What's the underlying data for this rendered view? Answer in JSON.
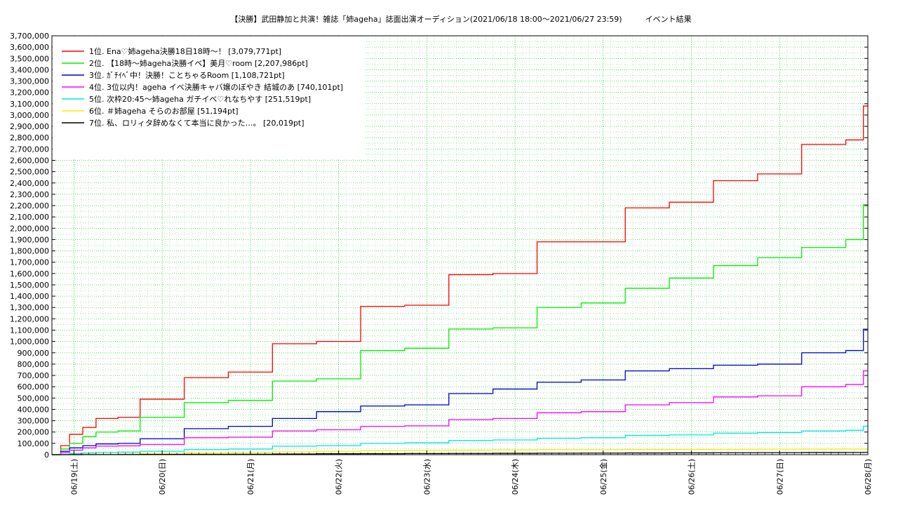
{
  "chart_data": {
    "type": "line",
    "title": "【決勝】武田静加と共演！雑誌「姉ageha」誌面出演オーディション(2021/06/18 18:00〜2021/06/27 23:59)　　　イベント結果",
    "xlabel": "",
    "ylabel": "",
    "ylim": [
      0,
      3700000
    ],
    "y_ticks": [
      "0",
      "100,000",
      "200,000",
      "300,000",
      "400,000",
      "500,000",
      "600,000",
      "700,000",
      "800,000",
      "900,000",
      "1,000,000",
      "1,100,000",
      "1,200,000",
      "1,300,000",
      "1,400,000",
      "1,500,000",
      "1,600,000",
      "1,700,000",
      "1,800,000",
      "1,900,000",
      "2,000,000",
      "2,100,000",
      "2,200,000",
      "2,300,000",
      "2,400,000",
      "2,500,000",
      "2,600,000",
      "2,700,000",
      "2,800,000",
      "2,900,000",
      "3,000,000",
      "3,100,000",
      "3,200,000",
      "3,300,000",
      "3,400,000",
      "3,500,000",
      "3,600,000",
      "3,700,000"
    ],
    "x_ticks": [
      "06/19(土)",
      "06/20(日)",
      "06/21(月)",
      "06/22(火)",
      "06/23(水)",
      "06/24(木)",
      "06/25(金)",
      "06/26(土)",
      "06/27(日)",
      "06/28(月)"
    ],
    "x_unit": "days since 2021/06/18 18:00",
    "xlim": [
      0,
      9.25
    ],
    "x": [
      0,
      0.1,
      0.2,
      0.35,
      0.5,
      0.75,
      1,
      1.5,
      2,
      2.5,
      3,
      3.5,
      4,
      4.5,
      5,
      5.5,
      6,
      6.5,
      7,
      7.5,
      8,
      8.5,
      9,
      9.2,
      9.25
    ],
    "grid": true,
    "legend_position": "top-left",
    "series": [
      {
        "name": "1位. Ena♡姉ageha決勝18日18時〜！ [3,079,771pt]",
        "color": "#ff0000",
        "values": [
          0,
          80000,
          180000,
          240000,
          320000,
          330000,
          490000,
          680000,
          730000,
          980000,
          1000000,
          1310000,
          1320000,
          1590000,
          1600000,
          1880000,
          1880000,
          2180000,
          2230000,
          2420000,
          2480000,
          2740000,
          2780000,
          3079771,
          3079771
        ]
      },
      {
        "name": "2位. 【18時〜姉ageha決勝イベ】美月♡room [2,207,986pt]",
        "color": "#00ee00",
        "values": [
          0,
          50000,
          100000,
          160000,
          200000,
          210000,
          330000,
          460000,
          480000,
          650000,
          670000,
          920000,
          940000,
          1110000,
          1120000,
          1300000,
          1340000,
          1470000,
          1560000,
          1670000,
          1740000,
          1830000,
          1900000,
          2207986,
          2207986
        ]
      },
      {
        "name": "3位. ｶﾞﾁｲﾍﾞ中！決勝！ことちゃるRoom [1,108,721pt]",
        "color": "#0000cc",
        "values": [
          0,
          30000,
          60000,
          80000,
          95000,
          100000,
          140000,
          230000,
          250000,
          320000,
          380000,
          430000,
          440000,
          540000,
          580000,
          640000,
          660000,
          740000,
          760000,
          790000,
          800000,
          900000,
          920000,
          1108721,
          1108721
        ]
      },
      {
        "name": "4位. 3位以内！ageha イベ決勝キャバ嬢のぼやき 結城のあ [740,101pt]",
        "color": "#ff00ff",
        "values": [
          0,
          20000,
          40000,
          60000,
          75000,
          78000,
          90000,
          150000,
          155000,
          210000,
          220000,
          250000,
          255000,
          310000,
          320000,
          370000,
          380000,
          440000,
          460000,
          510000,
          520000,
          600000,
          620000,
          740101,
          740101
        ]
      },
      {
        "name": "5位. 次枠20:45〜姉ageha ガチイベ♡れなちやす [251,519pt]",
        "color": "#00e6e6",
        "values": [
          0,
          5000,
          10000,
          15000,
          20000,
          22000,
          30000,
          45000,
          50000,
          75000,
          80000,
          100000,
          105000,
          125000,
          130000,
          145000,
          150000,
          170000,
          175000,
          190000,
          195000,
          210000,
          215000,
          251519,
          251519
        ]
      },
      {
        "name": "6位. ＃姉ageha そらのお部屋 [51,194pt]",
        "color": "#f0f000",
        "values": [
          0,
          1000,
          2000,
          3000,
          4000,
          5000,
          8000,
          15000,
          20000,
          25000,
          30000,
          35000,
          38000,
          40000,
          42000,
          44000,
          45000,
          46000,
          47000,
          48000,
          49000,
          50000,
          50500,
          51194,
          51194
        ]
      },
      {
        "name": "7位. 私、ロリィタ辞めなくて本当に良かった…。 [20,019pt]",
        "color": "#000000",
        "values": [
          0,
          200,
          500,
          800,
          1000,
          1500,
          2000,
          3000,
          4000,
          6000,
          8000,
          9000,
          10000,
          11000,
          12000,
          13000,
          14000,
          15000,
          16000,
          17000,
          18000,
          19000,
          19500,
          20019,
          20019
        ]
      }
    ]
  }
}
